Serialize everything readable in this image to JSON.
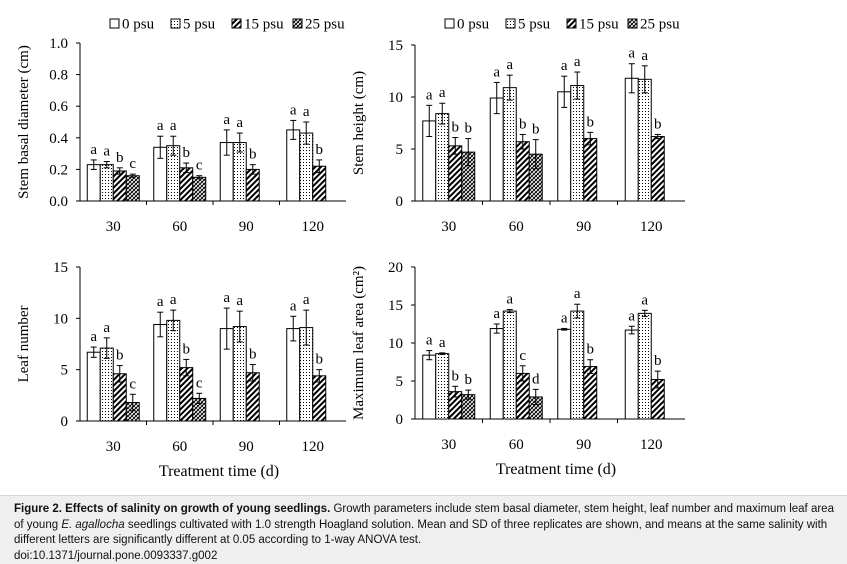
{
  "chart_data": [
    {
      "type": "bar",
      "panel": "top-left",
      "ylabel": "Stem basal diameter (cm)",
      "xlabel": "",
      "ylim": [
        0,
        1.0
      ],
      "yticks": [
        "0.0",
        "0.2",
        "0.4",
        "0.6",
        "0.8",
        "1.0"
      ],
      "ytick_values": [
        0,
        0.2,
        0.4,
        0.6,
        0.8,
        1.0
      ],
      "categories": [
        "30",
        "60",
        "90",
        "120"
      ],
      "legend": true,
      "series": [
        {
          "name": "0 psu",
          "values": [
            0.23,
            0.34,
            0.37,
            0.45
          ],
          "err": [
            0.03,
            0.07,
            0.08,
            0.06
          ],
          "letters": [
            "a",
            "a",
            "a",
            "a"
          ]
        },
        {
          "name": "5 psu",
          "values": [
            0.23,
            0.35,
            0.37,
            0.43
          ],
          "err": [
            0.02,
            0.06,
            0.06,
            0.07
          ],
          "letters": [
            "a",
            "a",
            "a",
            "a"
          ]
        },
        {
          "name": "15 psu",
          "values": [
            0.19,
            0.21,
            0.2,
            0.22
          ],
          "err": [
            0.02,
            0.03,
            0.03,
            0.04
          ],
          "letters": [
            "b",
            "b",
            "b",
            "b"
          ]
        },
        {
          "name": "25 psu",
          "values": [
            0.16,
            0.15,
            null,
            null
          ],
          "err": [
            0.01,
            0.01,
            null,
            null
          ],
          "letters": [
            "c",
            "c",
            "",
            ""
          ]
        }
      ]
    },
    {
      "type": "bar",
      "panel": "top-right",
      "ylabel": "Stem height (cm)",
      "xlabel": "",
      "ylim": [
        0,
        15
      ],
      "yticks": [
        "0",
        "5",
        "10",
        "15"
      ],
      "ytick_values": [
        0,
        5,
        10,
        15
      ],
      "categories": [
        "30",
        "60",
        "90",
        "120"
      ],
      "legend": true,
      "series": [
        {
          "name": "0 psu",
          "values": [
            7.7,
            9.9,
            10.5,
            11.8
          ],
          "err": [
            1.5,
            1.5,
            1.5,
            1.4
          ],
          "letters": [
            "a",
            "a",
            "a",
            "a"
          ]
        },
        {
          "name": "5 psu",
          "values": [
            8.4,
            10.9,
            11.1,
            11.7
          ],
          "err": [
            1.0,
            1.2,
            1.3,
            1.3
          ],
          "letters": [
            "a",
            "a",
            "a",
            "a"
          ]
        },
        {
          "name": "15 psu",
          "values": [
            5.3,
            5.7,
            6.0,
            6.2
          ],
          "err": [
            0.8,
            0.7,
            0.6,
            0.2
          ],
          "letters": [
            "b",
            "b",
            "b",
            "b"
          ]
        },
        {
          "name": "25 psu",
          "values": [
            4.7,
            4.5,
            null,
            null
          ],
          "err": [
            1.3,
            1.4,
            null,
            null
          ],
          "letters": [
            "b",
            "b",
            "",
            ""
          ]
        }
      ]
    },
    {
      "type": "bar",
      "panel": "bottom-left",
      "ylabel": "Leaf number",
      "xlabel": "Treatment time (d)",
      "ylim": [
        0,
        15
      ],
      "yticks": [
        "0",
        "5",
        "10",
        "15"
      ],
      "ytick_values": [
        0,
        5,
        10,
        15
      ],
      "categories": [
        "30",
        "60",
        "90",
        "120"
      ],
      "legend": false,
      "series": [
        {
          "name": "0 psu",
          "values": [
            6.7,
            9.4,
            9.0,
            9.0
          ],
          "err": [
            0.5,
            1.2,
            2.0,
            1.2
          ],
          "letters": [
            "a",
            "a",
            "a",
            "a"
          ]
        },
        {
          "name": "5 psu",
          "values": [
            7.1,
            9.8,
            9.2,
            9.1
          ],
          "err": [
            1.0,
            1.0,
            1.5,
            1.7
          ],
          "letters": [
            "a",
            "a",
            "a",
            "a"
          ]
        },
        {
          "name": "15 psu",
          "values": [
            4.6,
            5.2,
            4.7,
            4.4
          ],
          "err": [
            0.8,
            0.8,
            0.8,
            0.6
          ],
          "letters": [
            "b",
            "b",
            "b",
            "b"
          ]
        },
        {
          "name": "25 psu",
          "values": [
            1.8,
            2.2,
            null,
            null
          ],
          "err": [
            0.8,
            0.5,
            null,
            null
          ],
          "letters": [
            "c",
            "c",
            "",
            ""
          ]
        }
      ]
    },
    {
      "type": "bar",
      "panel": "bottom-right",
      "ylabel": "Maximum leaf area (cm²)",
      "xlabel": "Treatment time (d)",
      "ylim": [
        0,
        20
      ],
      "yticks": [
        "0",
        "5",
        "10",
        "15",
        "20"
      ],
      "ytick_values": [
        0,
        5,
        10,
        15,
        20
      ],
      "categories": [
        "30",
        "60",
        "90",
        "120"
      ],
      "legend": false,
      "series": [
        {
          "name": "0 psu",
          "values": [
            8.4,
            11.9,
            11.8,
            11.7
          ],
          "err": [
            0.6,
            0.6,
            0.1,
            0.5
          ],
          "letters": [
            "a",
            "a",
            "a",
            "a"
          ]
        },
        {
          "name": "5 psu",
          "values": [
            8.6,
            14.2,
            14.2,
            13.9
          ],
          "err": [
            0.1,
            0.2,
            0.9,
            0.4
          ],
          "letters": [
            "a",
            "a",
            "a",
            "a"
          ]
        },
        {
          "name": "15 psu",
          "values": [
            3.6,
            6.0,
            6.9,
            5.2
          ],
          "err": [
            0.7,
            1.0,
            0.9,
            1.1
          ],
          "letters": [
            "b",
            "c",
            "b",
            "b"
          ]
        },
        {
          "name": "25 psu",
          "values": [
            3.2,
            2.9,
            null,
            null
          ],
          "err": [
            0.6,
            1.0,
            null,
            null
          ],
          "letters": [
            "b",
            "d",
            "",
            ""
          ]
        }
      ]
    }
  ],
  "caption": {
    "title": "Figure 2. Effects of salinity on growth of young seedlings.",
    "body_part1": " Growth parameters include stem basal diameter, stem height, leaf number and maximum leaf area of young ",
    "species": "E. agallocha",
    "body_part2": " seedlings cultivated with 1.0 strength Hoagland solution. Mean and SD of three replicates are shown, and means at the same salinity with different letters are significantly different at 0.05 according to 1-way ANOVA test.",
    "doi": "doi:10.1371/journal.pone.0093337.g002"
  }
}
